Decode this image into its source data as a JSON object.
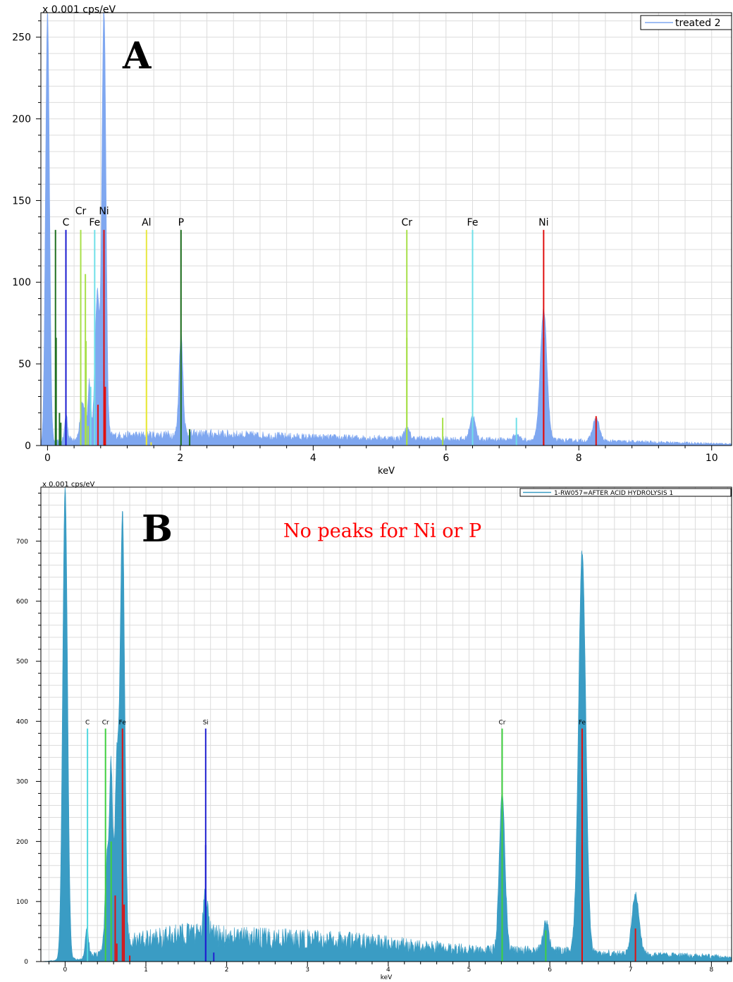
{
  "chart_data": [
    {
      "type": "area",
      "panel_label": "A",
      "y_unit_label": "x 0.001 cps/eV",
      "xlabel": "keV",
      "xlim": [
        -0.1,
        10.3
      ],
      "ylim": [
        0,
        265
      ],
      "x_ticks": [
        0,
        2,
        4,
        6,
        8,
        10
      ],
      "y_ticks": [
        0,
        50,
        100,
        150,
        200,
        250
      ],
      "grid": true,
      "legend": {
        "position": "top-right",
        "entries": [
          "treated 2"
        ]
      },
      "series": [
        {
          "name": "treated 2",
          "color": "#7fa7f0",
          "peaks": [
            {
              "x": 0.0,
              "y": 265,
              "w": 0.03
            },
            {
              "x": 0.28,
              "y": 16,
              "w": 0.02
            },
            {
              "x": 0.52,
              "y": 20,
              "w": 0.03
            },
            {
              "x": 0.57,
              "y": 12,
              "w": 0.02
            },
            {
              "x": 0.63,
              "y": 35,
              "w": 0.02
            },
            {
              "x": 0.75,
              "y": 88,
              "w": 0.035
            },
            {
              "x": 0.85,
              "y": 265,
              "w": 0.03
            },
            {
              "x": 2.01,
              "y": 62,
              "w": 0.03
            },
            {
              "x": 5.41,
              "y": 6,
              "w": 0.04
            },
            {
              "x": 6.4,
              "y": 15,
              "w": 0.04
            },
            {
              "x": 7.06,
              "y": 4,
              "w": 0.04
            },
            {
              "x": 7.47,
              "y": 80,
              "w": 0.05
            },
            {
              "x": 8.26,
              "y": 14,
              "w": 0.05
            }
          ],
          "background": [
            [
              0.3,
              4
            ],
            [
              1.0,
              6
            ],
            [
              2.5,
              7
            ],
            [
              4.0,
              5
            ],
            [
              6.0,
              4
            ],
            [
              8.0,
              3
            ],
            [
              10.3,
              1
            ]
          ]
        }
      ],
      "element_markers": [
        {
          "element": "C",
          "x": 0.277,
          "height": 132,
          "color": "#1a1ad0",
          "label": "C",
          "label_row": 0
        },
        {
          "element": "Cr",
          "x": 0.5,
          "height": 132,
          "color": "#a8e04a",
          "label": "Cr",
          "label_row": 1
        },
        {
          "element": "Fe",
          "x": 0.71,
          "height": 132,
          "color": "#70e0e8",
          "label": "Fe",
          "label_row": 0
        },
        {
          "element": "Ni",
          "x": 0.85,
          "height": 132,
          "color": "#e01010",
          "label": "Ni",
          "label_row": 1
        },
        {
          "element": "Al",
          "x": 1.49,
          "height": 132,
          "color": "#e8e840",
          "label": "Al",
          "label_row": 0
        },
        {
          "element": "P",
          "x": 2.01,
          "height": 132,
          "color": "#207020",
          "label": "P",
          "label_row": 0
        },
        {
          "element": "Cr",
          "x": 5.41,
          "height": 132,
          "color": "#a8e04a",
          "label": "Cr",
          "label_row": 0
        },
        {
          "element": "Fe",
          "x": 6.4,
          "height": 132,
          "color": "#70e0e8",
          "label": "Fe",
          "label_row": 0
        },
        {
          "element": "Ni",
          "x": 7.47,
          "height": 132,
          "color": "#e01010",
          "label": "Ni",
          "label_row": 0
        },
        {
          "element": "",
          "x": 0.12,
          "height": 132,
          "color": "#207020"
        },
        {
          "element": "",
          "x": 0.13,
          "height": 66,
          "color": "#207020"
        },
        {
          "element": "",
          "x": 0.18,
          "height": 20,
          "color": "#207020"
        },
        {
          "element": "",
          "x": 0.2,
          "height": 14,
          "color": "#207020"
        },
        {
          "element": "",
          "x": 0.57,
          "height": 105,
          "color": "#a8e04a"
        },
        {
          "element": "",
          "x": 0.58,
          "height": 64,
          "color": "#a8e04a"
        },
        {
          "element": "",
          "x": 0.61,
          "height": 12,
          "color": "#a8e04a"
        },
        {
          "element": "",
          "x": 0.65,
          "height": 36,
          "color": "#70e0e8"
        },
        {
          "element": "",
          "x": 0.76,
          "height": 25,
          "color": "#e01010"
        },
        {
          "element": "",
          "x": 0.87,
          "height": 36,
          "color": "#e01010"
        },
        {
          "element": "",
          "x": 1.49,
          "height": 66,
          "color": "#e8e840"
        },
        {
          "element": "",
          "x": 1.56,
          "height": 2,
          "color": "#e8e840"
        },
        {
          "element": "",
          "x": 2.14,
          "height": 10,
          "color": "#207020"
        },
        {
          "element": "",
          "x": 5.41,
          "height": 66,
          "color": "#a8e04a"
        },
        {
          "element": "",
          "x": 5.95,
          "height": 17,
          "color": "#a8e04a"
        },
        {
          "element": "",
          "x": 6.4,
          "height": 66,
          "color": "#70e0e8"
        },
        {
          "element": "",
          "x": 7.06,
          "height": 17,
          "color": "#70e0e8"
        },
        {
          "element": "",
          "x": 7.47,
          "height": 66,
          "color": "#e01010"
        },
        {
          "element": "",
          "x": 8.26,
          "height": 18,
          "color": "#e01010"
        }
      ]
    },
    {
      "type": "area",
      "panel_label": "B",
      "annotation": "No peaks for Ni or P",
      "y_unit_label": "x 0.001 cps/eV",
      "xlabel": "keV",
      "xlim": [
        -0.3,
        8.25
      ],
      "ylim": [
        0,
        790
      ],
      "x_ticks": [
        0,
        1,
        2,
        3,
        4,
        5,
        6,
        7,
        8
      ],
      "y_ticks": [
        0,
        100,
        200,
        300,
        400,
        500,
        600,
        700
      ],
      "grid": true,
      "legend": {
        "position": "top-right",
        "entries": [
          "1-RW057=AFTER ACID HYDROLYSIS 1"
        ]
      },
      "series": [
        {
          "name": "1-RW057=AFTER ACID HYDROLYSIS 1",
          "color": "#3a9cc4",
          "peaks": [
            {
              "x": 0.0,
              "y": 790,
              "w": 0.03
            },
            {
              "x": 0.27,
              "y": 50,
              "w": 0.02
            },
            {
              "x": 0.52,
              "y": 150,
              "w": 0.025
            },
            {
              "x": 0.57,
              "y": 290,
              "w": 0.02
            },
            {
              "x": 0.64,
              "y": 300,
              "w": 0.025
            },
            {
              "x": 0.71,
              "y": 715,
              "w": 0.028
            },
            {
              "x": 1.74,
              "y": 65,
              "w": 0.03
            },
            {
              "x": 5.41,
              "y": 265,
              "w": 0.035
            },
            {
              "x": 5.95,
              "y": 50,
              "w": 0.035
            },
            {
              "x": 6.4,
              "y": 670,
              "w": 0.045
            },
            {
              "x": 7.06,
              "y": 100,
              "w": 0.045
            }
          ],
          "background": [
            [
              0.2,
              5
            ],
            [
              0.9,
              35
            ],
            [
              1.5,
              45
            ],
            [
              2.2,
              40
            ],
            [
              3.5,
              35
            ],
            [
              5.0,
              20
            ],
            [
              6.0,
              18
            ],
            [
              7.0,
              12
            ],
            [
              8.25,
              8
            ]
          ]
        }
      ],
      "element_markers": [
        {
          "element": "C",
          "x": 0.277,
          "height": 388,
          "color": "#50d8e0",
          "label": "C",
          "label_row": 0
        },
        {
          "element": "Cr",
          "x": 0.5,
          "height": 388,
          "color": "#40d040",
          "label": "Cr",
          "label_row": 0
        },
        {
          "element": "Fe",
          "x": 0.71,
          "height": 388,
          "color": "#e01010",
          "label": "Fe",
          "label_row": 0
        },
        {
          "element": "Si",
          "x": 1.74,
          "height": 388,
          "color": "#2020d0",
          "label": "Si",
          "label_row": 0
        },
        {
          "element": "Cr",
          "x": 5.41,
          "height": 388,
          "color": "#40d040",
          "label": "Cr",
          "label_row": 0
        },
        {
          "element": "Fe",
          "x": 6.4,
          "height": 388,
          "color": "#e01010",
          "label": "Fe",
          "label_row": 0
        },
        {
          "element": "",
          "x": 0.57,
          "height": 200,
          "color": "#40d040"
        },
        {
          "element": "",
          "x": 0.62,
          "height": 110,
          "color": "#e01010"
        },
        {
          "element": "",
          "x": 0.64,
          "height": 30,
          "color": "#e01010"
        },
        {
          "element": "",
          "x": 0.73,
          "height": 95,
          "color": "#e01010"
        },
        {
          "element": "",
          "x": 0.8,
          "height": 10,
          "color": "#e01010"
        },
        {
          "element": "",
          "x": 1.74,
          "height": 194,
          "color": "#2020d0"
        },
        {
          "element": "",
          "x": 1.84,
          "height": 15,
          "color": "#2020d0"
        },
        {
          "element": "",
          "x": 5.41,
          "height": 194,
          "color": "#40d040"
        },
        {
          "element": "",
          "x": 5.95,
          "height": 52,
          "color": "#40d040"
        },
        {
          "element": "",
          "x": 6.4,
          "height": 194,
          "color": "#e01010"
        },
        {
          "element": "",
          "x": 7.06,
          "height": 55,
          "color": "#e01010"
        }
      ]
    }
  ]
}
